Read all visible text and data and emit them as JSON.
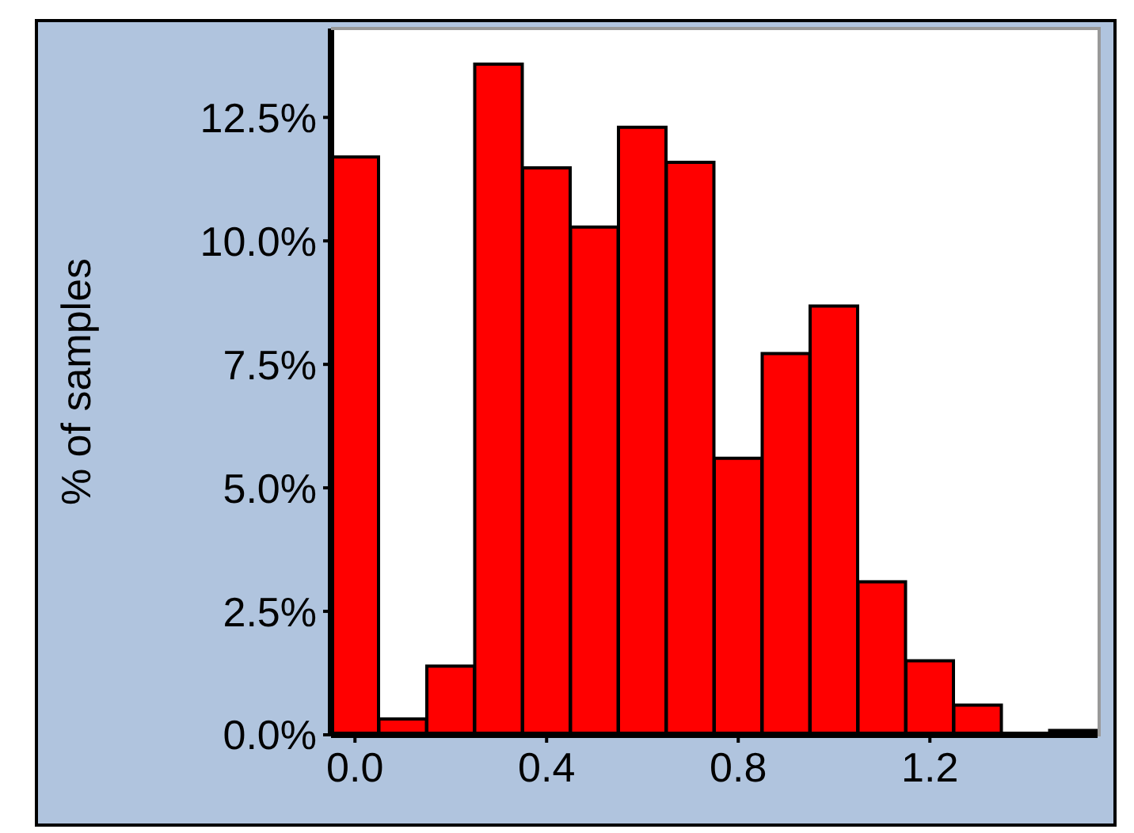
{
  "chart_data": {
    "type": "histogram",
    "ylabel": "% of samples",
    "bins": [
      -0.05,
      0.05,
      0.15,
      0.25,
      0.35,
      0.45,
      0.55,
      0.65,
      0.75,
      0.85,
      0.95,
      1.05,
      1.15,
      1.25,
      1.35,
      1.45,
      1.55
    ],
    "values": [
      11.7,
      0.32,
      1.39,
      13.58,
      11.48,
      10.28,
      12.3,
      11.59,
      5.6,
      7.72,
      8.68,
      3.1,
      1.5,
      0.6,
      0,
      0.09
    ],
    "color": "#ff0000",
    "xlim": [
      -0.05,
      1.55
    ],
    "xticks": [
      {
        "value": 0,
        "label": "0.0"
      },
      {
        "value": 0.4,
        "label": "0.4"
      },
      {
        "value": 0.8,
        "label": "0.8"
      },
      {
        "value": 1.2,
        "label": "1.2"
      }
    ],
    "ylim": [
      0,
      14.3
    ],
    "yticks": [
      {
        "value": 0,
        "label": "0.0%"
      },
      {
        "value": 2.5,
        "label": "2.5%"
      },
      {
        "value": 5,
        "label": "5.0%"
      },
      {
        "value": 7.5,
        "label": "7.5%"
      },
      {
        "value": 10,
        "label": "10.0%"
      },
      {
        "value": 12.5,
        "label": "12.5%"
      }
    ],
    "grid": false,
    "legend": false
  }
}
